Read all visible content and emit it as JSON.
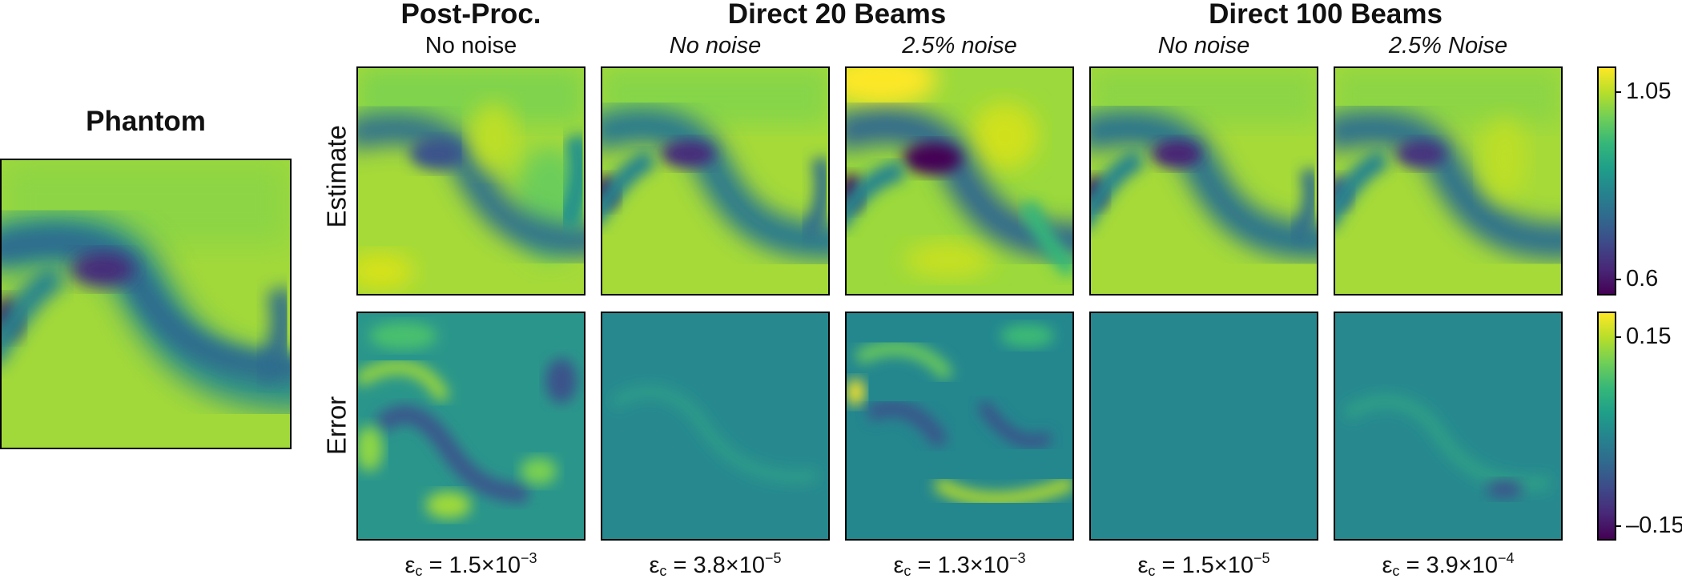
{
  "phantom": {
    "title": "Phantom"
  },
  "groups": [
    {
      "title": "Post-Proc."
    },
    {
      "title": "Direct 20 Beams"
    },
    {
      "title": "Direct 100 Beams"
    }
  ],
  "columns": [
    {
      "noise": "No noise",
      "eps_mantissa": "1.5",
      "eps_exponent": "−3"
    },
    {
      "noise": "No noise",
      "eps_mantissa": "3.8",
      "eps_exponent": "−5"
    },
    {
      "noise": "2.5% noise",
      "eps_mantissa": "1.3",
      "eps_exponent": "−3"
    },
    {
      "noise": "No noise",
      "eps_mantissa": "1.5",
      "eps_exponent": "−5"
    },
    {
      "noise": "2.5% Noise",
      "eps_mantissa": "3.9",
      "eps_exponent": "−4"
    }
  ],
  "rows": {
    "estimate": "Estimate",
    "error": "Error"
  },
  "eps_symbol": "ε",
  "eps_subscript": "c",
  "colorbars": {
    "estimate": {
      "max_label": "1.05",
      "min_label": "0.6"
    },
    "error": {
      "max_label": "0.15",
      "min_label": "–0.15"
    }
  },
  "colormap": "viridis"
}
